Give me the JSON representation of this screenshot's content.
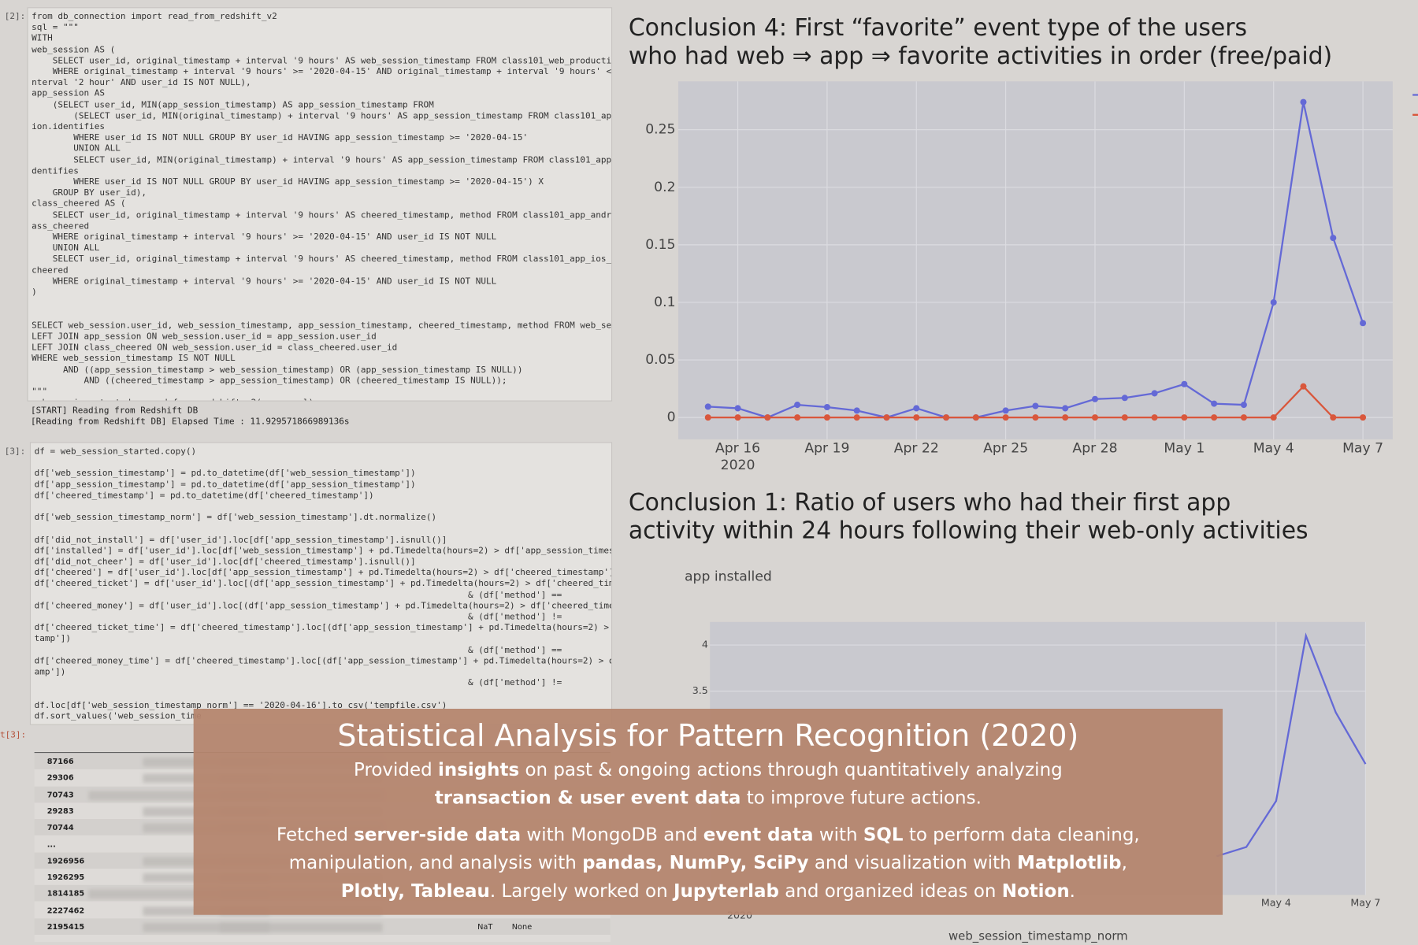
{
  "notebook": {
    "cells": [
      {
        "prompt": "[2]:",
        "code": "from db_connection import read_from_redshift_v2\nsql = \"\"\"\nWITH\nweb_session AS (\n    SELECT user_id, original_timestamp + interval '9 hours' AS web_session_timestamp FROM class101_web_production.i\n    WHERE original_timestamp + interval '9 hours' >= '2020-04-15' AND original_timestamp + interval '9 hours' < cur\nnterval '2 hour' AND user_id IS NOT NULL),\napp_session AS\n    (SELECT user_id, MIN(app_session_timestamp) AS app_session_timestamp FROM\n        (SELECT user_id, MIN(original_timestamp) + interval '9 hours' AS app_session_timestamp FROM class101_app_an\nion.identifies\n        WHERE user_id IS NOT NULL GROUP BY user_id HAVING app_session_timestamp >= '2020-04-15'\n        UNION ALL\n        SELECT user_id, MIN(original_timestamp) + interval '9 hours' AS app_session_timestamp FROM class101_app_ios\ndentifies\n        WHERE user_id IS NOT NULL GROUP BY user_id HAVING app_session_timestamp >= '2020-04-15') X\n    GROUP BY user_id),\nclass_cheered AS (\n    SELECT user_id, original_timestamp + interval '9 hours' AS cheered_timestamp, method FROM class101_app_android_\nass_cheered\n    WHERE original_timestamp + interval '9 hours' >= '2020-04-15' AND user_id IS NOT NULL\n    UNION ALL\n    SELECT user_id, original_timestamp + interval '9 hours' AS cheered_timestamp, method FROM class101_app_ios_prod\ncheered\n    WHERE original_timestamp + interval '9 hours' >= '2020-04-15' AND user_id IS NOT NULL\n)\n\n\nSELECT web_session.user_id, web_session_timestamp, app_session_timestamp, cheered_timestamp, method FROM web_sessio\nLEFT JOIN app_session ON web_session.user_id = app_session.user_id\nLEFT JOIN class_cheered ON web_session.user_id = class_cheered.user_id\nWHERE web_session_timestamp IS NOT NULL\n      AND ((app_session_timestamp > web_session_timestamp) OR (app_session_timestamp IS NULL))\n          AND ((cheered_timestamp > app_session_timestamp) OR (cheered_timestamp IS NULL));\n\"\"\"\nweb_session_started = read_from_redshift_v2(query=sql)",
        "output": "[START] Reading from Redshift DB\n[Reading from Redshift DB] Elapsed Time : 11.929571866989136s"
      },
      {
        "prompt": "[3]:",
        "code": "df = web_session_started.copy()\n\ndf['web_session_timestamp'] = pd.to_datetime(df['web_session_timestamp'])\ndf['app_session_timestamp'] = pd.to_datetime(df['app_session_timestamp'])\ndf['cheered_timestamp'] = pd.to_datetime(df['cheered_timestamp'])\n\ndf['web_session_timestamp_norm'] = df['web_session_timestamp'].dt.normalize()\n\ndf['did_not_install'] = df['user_id'].loc[df['app_session_timestamp'].isnull()]\ndf['installed'] = df['user_id'].loc[df['web_session_timestamp'] + pd.Timedelta(hours=2) > df['app_session_timestam\ndf['did_not_cheer'] = df['user_id'].loc[df['cheered_timestamp'].isnull()]\ndf['cheered'] = df['user_id'].loc[df['app_session_timestamp'] + pd.Timedelta(hours=2) > df['cheered_timestamp']]\ndf['cheered_ticket'] = df['user_id'].loc[(df['app_session_timestamp'] + pd.Timedelta(hours=2) > df['cheered_timest\n                                                                                   & (df['method'] ==\ndf['cheered_money'] = df['user_id'].loc[(df['app_session_timestamp'] + pd.Timedelta(hours=2) > df['cheered_timesta\n                                                                                   & (df['method'] !=\ndf['cheered_ticket_time'] = df['cheered_timestamp'].loc[(df['app_session_timestamp'] + pd.Timedelta(hours=2) > df[\ntamp'])\n                                                                                   & (df['method'] ==\ndf['cheered_money_time'] = df['cheered_timestamp'].loc[(df['app_session_timestamp'] + pd.Timedelta(hours=2) > df['\namp'])\n                                                                                   & (df['method'] !=\n\ndf.loc[df['web_session_timestamp_norm'] == '2020-04-16'].to_csv('tempfile.csv')\ndf.sort_values('web_session_time"
      },
      {
        "prompt": "t[3]:",
        "table": {
          "index": [
            "87166",
            "29306",
            "70743",
            "29283",
            "70744",
            "...",
            "1926956",
            "1926295",
            "1814185",
            "2227462",
            "2195415"
          ],
          "last_row": [
            "NaT",
            "None"
          ]
        }
      }
    ]
  },
  "chart_data": [
    {
      "type": "line",
      "title": [
        "Conclusion 4: First “favorite” event type of the users",
        "who had web ⇒ app ⇒ favorite activities in order (free/paid)"
      ],
      "x": [
        "2020-04-15",
        "2020-04-16",
        "2020-04-17",
        "2020-04-18",
        "2020-04-19",
        "2020-04-20",
        "2020-04-21",
        "2020-04-22",
        "2020-04-23",
        "2020-04-24",
        "2020-04-25",
        "2020-04-26",
        "2020-04-27",
        "2020-04-28",
        "2020-04-29",
        "2020-04-30",
        "2020-05-01",
        "2020-05-02",
        "2020-05-03",
        "2020-05-04",
        "2020-05-05",
        "2020-05-06",
        "2020-05-07"
      ],
      "series": [
        {
          "color": "#6469d6",
          "values": [
            0.0094,
            0.008,
            0,
            0.011,
            0.009,
            0.006,
            0,
            0.008,
            0,
            0,
            0.006,
            0.01,
            0.008,
            0.016,
            0.017,
            0.021,
            0.029,
            0.012,
            0.011,
            0.1,
            0.274,
            0.156,
            0.082
          ]
        },
        {
          "color": "#d9573c",
          "values": [
            0,
            0,
            0,
            0,
            0,
            0,
            0,
            0,
            0,
            0,
            0,
            0,
            0,
            0,
            0,
            0,
            0,
            0,
            0,
            0,
            0.027,
            0,
            0
          ]
        }
      ],
      "xlim": [
        "2020-04-14",
        "2020-05-08"
      ],
      "xticks": [
        {
          "value": "2020-04-16",
          "label": "Apr 16"
        },
        {
          "value": "2020-04-19",
          "label": "Apr 19"
        },
        {
          "value": "2020-04-22",
          "label": "Apr 22"
        },
        {
          "value": "2020-04-25",
          "label": "Apr 25"
        },
        {
          "value": "2020-04-28",
          "label": "Apr 28"
        },
        {
          "value": "2020-05-01",
          "label": "May 1"
        },
        {
          "value": "2020-05-04",
          "label": "May 4"
        },
        {
          "value": "2020-05-07",
          "label": "May 7"
        }
      ],
      "x_year": "2020",
      "ylim": [
        -0.019,
        0.292
      ],
      "yticks": [
        0,
        0.05,
        0.1,
        0.15,
        0.2,
        0.25
      ],
      "grid": true,
      "markers": true,
      "legend": "right"
    },
    {
      "type": "line",
      "title": [
        "Conclusion 1: Ratio of users who had their first app",
        "activity within 24 hours following their web-only activities"
      ],
      "y_label": "app installed",
      "x_label": "web_session_timestamp_norm",
      "x": [
        "2020-05-02",
        "2020-05-03",
        "2020-05-04",
        "2020-05-05",
        "2020-05-06",
        "2020-05-07"
      ],
      "series": [
        {
          "color": "#6469d6",
          "values": [
            1.71,
            1.81,
            2.31,
            4.1,
            3.27,
            2.71
          ]
        }
      ],
      "xlim": [
        "2020-04-15",
        "2020-05-07"
      ],
      "xticks": [
        {
          "value": "2020-05-04",
          "label": "May 4"
        },
        {
          "value": "2020-05-07",
          "label": "May 7"
        }
      ],
      "x_year": "2020",
      "ylim": [
        1.29,
        4.25
      ],
      "yticks": [
        3.5,
        4
      ],
      "grid": true,
      "markers": false
    }
  ],
  "overlay": {
    "title": "Statistical Analysis for Pattern Recognition (2020)",
    "paragraphs": [
      {
        "lines": [
          [
            {
              "text": "Provided ",
              "bold": false
            },
            {
              "text": "insights",
              "bold": true
            },
            {
              "text": " on past & ongoing actions through quantitatively analyzing",
              "bold": false
            }
          ],
          [
            {
              "text": "transaction & user event data",
              "bold": true
            },
            {
              "text": " to improve future actions.",
              "bold": false
            }
          ]
        ]
      },
      {
        "lines": [
          [
            {
              "text": "Fetched ",
              "bold": false
            },
            {
              "text": "server-side data",
              "bold": true
            },
            {
              "text": " with MongoDB and ",
              "bold": false
            },
            {
              "text": "event data",
              "bold": true
            },
            {
              "text": " with ",
              "bold": false
            },
            {
              "text": "SQL",
              "bold": true
            },
            {
              "text": " to perform data cleaning,",
              "bold": false
            }
          ],
          [
            {
              "text": "manipulation, and analysis with ",
              "bold": false
            },
            {
              "text": "pandas, NumPy, SciPy",
              "bold": true
            },
            {
              "text": " and visualization with ",
              "bold": false
            },
            {
              "text": "Matplotlib",
              "bold": true
            },
            {
              "text": ",",
              "bold": false
            }
          ],
          [
            {
              "text": "Plotly, Tableau",
              "bold": true
            },
            {
              "text": ". Largely worked on ",
              "bold": false
            },
            {
              "text": "Jupyterlab",
              "bold": true
            },
            {
              "text": " and organized ideas on ",
              "bold": false
            },
            {
              "text": "Notion",
              "bold": true
            },
            {
              "text": ".",
              "bold": false
            }
          ]
        ]
      }
    ]
  }
}
